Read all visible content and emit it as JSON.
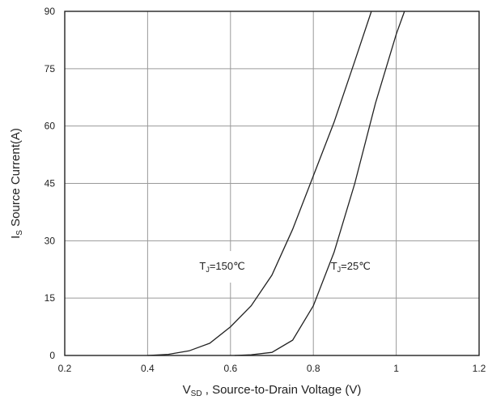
{
  "chart_data": {
    "type": "line",
    "xlabel": {
      "main": "V",
      "sub": "SD",
      "rest": " , Source-to-Drain Voltage (V)"
    },
    "ylabel": {
      "main": "I",
      "sub": "S",
      "rest": " Source Current(A)"
    },
    "xlim": [
      0.2,
      1.2
    ],
    "ylim": [
      0,
      90
    ],
    "xticks": [
      0.2,
      0.4,
      0.6,
      0.8,
      1,
      1.2
    ],
    "xtick_labels": [
      "0.2",
      "0.4",
      "0.6",
      "0.8",
      "1",
      "1.2"
    ],
    "yticks": [
      0,
      15,
      30,
      45,
      60,
      75,
      90
    ],
    "ytick_labels": [
      "0",
      "15",
      "30",
      "45",
      "60",
      "75",
      "90"
    ],
    "grid": true,
    "series": [
      {
        "name": "TJ=150°C",
        "points": [
          [
            0.4,
            0
          ],
          [
            0.45,
            0.3
          ],
          [
            0.5,
            1.2
          ],
          [
            0.55,
            3.2
          ],
          [
            0.6,
            7.5
          ],
          [
            0.65,
            13
          ],
          [
            0.7,
            21
          ],
          [
            0.75,
            33
          ],
          [
            0.8,
            47
          ],
          [
            0.85,
            61
          ],
          [
            0.9,
            77
          ],
          [
            0.94,
            90
          ]
        ]
      },
      {
        "name": "TJ=25°C",
        "points": [
          [
            0.61,
            0
          ],
          [
            0.65,
            0.2
          ],
          [
            0.7,
            0.8
          ],
          [
            0.75,
            4
          ],
          [
            0.8,
            13
          ],
          [
            0.85,
            27
          ],
          [
            0.9,
            45
          ],
          [
            0.95,
            66
          ],
          [
            1.0,
            84
          ],
          [
            1.02,
            90
          ]
        ]
      }
    ],
    "annotations": [
      {
        "id": "a150",
        "main": "T",
        "sub": "J",
        "rest": "=150℃",
        "x": 0.58,
        "y": 23.5
      },
      {
        "id": "a25",
        "main": "T",
        "sub": "J",
        "rest": "=25℃",
        "x": 0.89,
        "y": 23.5
      }
    ]
  }
}
